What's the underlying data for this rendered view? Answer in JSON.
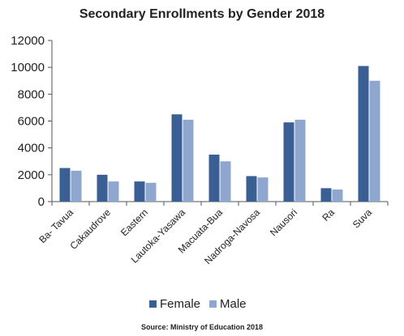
{
  "chart_data": {
    "type": "bar",
    "title": "Secondary Enrollments by Gender 2018",
    "xlabel": "",
    "ylabel": "",
    "categories": [
      "Ba- Tavua",
      "Cakaudrove",
      "Eastern",
      "Lautoka-Yasawa",
      "Macuata-Bua",
      "Nadroga-Navosa",
      "Nausori",
      "Ra",
      "Suva"
    ],
    "series": [
      {
        "name": "Female",
        "color": "#3a5f94",
        "values": [
          2500,
          2000,
          1500,
          6500,
          3500,
          1900,
          5900,
          1000,
          10100
        ]
      },
      {
        "name": "Male",
        "color": "#8fa7cf",
        "values": [
          2300,
          1500,
          1400,
          6100,
          3000,
          1800,
          6100,
          900,
          9000
        ]
      }
    ],
    "ylim": [
      0,
      12000
    ],
    "yticks": [
      "0",
      "2000",
      "4000",
      "6000",
      "8000",
      "10000",
      "12000"
    ],
    "grid": false,
    "legend_position": "bottom",
    "source": "Source: Ministry of Education 2018"
  }
}
